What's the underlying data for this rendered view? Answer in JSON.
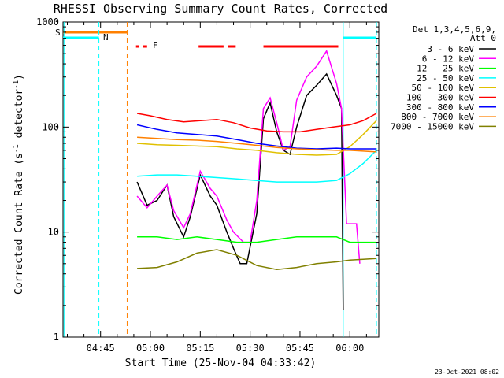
{
  "chart_data": {
    "type": "line",
    "title": "RHESSI Observing Summary Count Rates, Corrected",
    "xlabel": "Start Time (25-Nov-04 04:33:42)",
    "ylabel": "Corrected Count Rate (s⁻¹ detector⁻¹)",
    "yscale": "log",
    "ylim": [
      1,
      1000
    ],
    "xlim_minutes": [
      0,
      95
    ],
    "x_tick_labels": [
      "04:45",
      "05:00",
      "05:15",
      "05:30",
      "05:45",
      "06:00"
    ],
    "y_tick_labels": [
      "1",
      "10",
      "100",
      "1000"
    ],
    "grid": false,
    "legend_position": "right, outside plot",
    "legend_header_lines": [
      "Det 1,3,4,5,6,9,",
      "Att 0"
    ],
    "flag_labels": {
      "saa": "S",
      "night": "N",
      "flare": "F"
    },
    "flag_colors": {
      "saa": "#ff8000",
      "night": "#00ffff",
      "flare": "#ff0000"
    },
    "flare_flag_segments": [
      [
        "04:55:40",
        "04:56:30"
      ],
      [
        "04:57:50",
        "04:59:00"
      ],
      [
        "05:14:30",
        "05:22:00"
      ],
      [
        "05:23:20",
        "05:25:40"
      ],
      [
        "05:34:00",
        "05:56:30"
      ]
    ],
    "eclipse_lines": [
      {
        "time": "04:34:00",
        "style": "solid",
        "color": "#00ffff"
      },
      {
        "time": "04:44:30",
        "style": "dashed",
        "color": "#00ffff"
      },
      {
        "time": "04:53:00",
        "style": "dashed",
        "color": "#ff8000"
      },
      {
        "time": "05:58:00",
        "style": "solid",
        "color": "#00ffff"
      },
      {
        "time": "06:08:00",
        "style": "dashed",
        "color": "#00ffff"
      }
    ],
    "series": [
      {
        "name": "3 - 6 keV",
        "color": "#000000",
        "points": [
          [
            "04:56:00",
            30
          ],
          [
            "04:59:00",
            18
          ],
          [
            "05:02:00",
            20
          ],
          [
            "05:05:00",
            28
          ],
          [
            "05:07:00",
            14
          ],
          [
            "05:10:00",
            9
          ],
          [
            "05:12:00",
            14
          ],
          [
            "05:15:00",
            35
          ],
          [
            "05:18:00",
            22
          ],
          [
            "05:20:00",
            18
          ],
          [
            "05:23:00",
            10
          ],
          [
            "05:25:00",
            7
          ],
          [
            "05:27:00",
            5
          ],
          [
            "05:29:00",
            5
          ],
          [
            "05:32:00",
            15
          ],
          [
            "05:34:00",
            120
          ],
          [
            "05:36:00",
            170
          ],
          [
            "05:38:00",
            90
          ],
          [
            "05:40:00",
            60
          ],
          [
            "05:42:00",
            55
          ],
          [
            "05:44:00",
            100
          ],
          [
            "05:47:00",
            200
          ],
          [
            "05:50:00",
            250
          ],
          [
            "05:53:00",
            320
          ],
          [
            "05:56:00",
            200
          ],
          [
            "05:57:30",
            150
          ],
          [
            "05:58:00",
            1.8
          ]
        ]
      },
      {
        "name": "6 - 12 keV",
        "color": "#ff00ff",
        "points": [
          [
            "04:56:00",
            22
          ],
          [
            "04:59:00",
            17
          ],
          [
            "05:02:00",
            22
          ],
          [
            "05:05:00",
            28
          ],
          [
            "05:07:00",
            16
          ],
          [
            "05:10:00",
            11
          ],
          [
            "05:12:00",
            15
          ],
          [
            "05:15:00",
            38
          ],
          [
            "05:18:00",
            26
          ],
          [
            "05:20:00",
            22
          ],
          [
            "05:23:00",
            13
          ],
          [
            "05:25:00",
            10
          ],
          [
            "05:28:00",
            8
          ],
          [
            "05:30:00",
            8
          ],
          [
            "05:32:00",
            20
          ],
          [
            "05:34:00",
            150
          ],
          [
            "05:36:00",
            190
          ],
          [
            "05:38:00",
            110
          ],
          [
            "05:40:00",
            60
          ],
          [
            "05:42:00",
            65
          ],
          [
            "05:44:00",
            180
          ],
          [
            "05:47:00",
            300
          ],
          [
            "05:50:00",
            380
          ],
          [
            "05:53:00",
            530
          ],
          [
            "05:56:00",
            260
          ],
          [
            "05:57:30",
            150
          ],
          [
            "05:59:00",
            12
          ],
          [
            "06:02:00",
            12
          ],
          [
            "06:03:00",
            5
          ]
        ]
      },
      {
        "name": "12 - 25 keV",
        "color": "#00ff00",
        "points": [
          [
            "04:56:00",
            9
          ],
          [
            "05:02:00",
            9
          ],
          [
            "05:08:00",
            8.5
          ],
          [
            "05:14:00",
            9
          ],
          [
            "05:20:00",
            8.5
          ],
          [
            "05:26:00",
            8
          ],
          [
            "05:32:00",
            8
          ],
          [
            "05:38:00",
            8.5
          ],
          [
            "05:44:00",
            9
          ],
          [
            "05:50:00",
            9
          ],
          [
            "05:56:00",
            9
          ],
          [
            "06:00:00",
            8
          ],
          [
            "06:08:00",
            8
          ]
        ]
      },
      {
        "name": "25 - 50 keV",
        "color": "#00ffff",
        "points": [
          [
            "04:56:00",
            34
          ],
          [
            "05:02:00",
            35
          ],
          [
            "05:08:00",
            35
          ],
          [
            "05:14:00",
            34
          ],
          [
            "05:20:00",
            33
          ],
          [
            "05:26:00",
            32
          ],
          [
            "05:32:00",
            31
          ],
          [
            "05:38:00",
            30
          ],
          [
            "05:44:00",
            30
          ],
          [
            "05:50:00",
            30
          ],
          [
            "05:56:00",
            31
          ],
          [
            "06:00:00",
            36
          ],
          [
            "06:04:00",
            45
          ],
          [
            "06:08:00",
            60
          ]
        ]
      },
      {
        "name": "50 - 100 keV",
        "color": "#e0c000",
        "points": [
          [
            "04:56:00",
            70
          ],
          [
            "05:02:00",
            68
          ],
          [
            "05:08:00",
            67
          ],
          [
            "05:14:00",
            66
          ],
          [
            "05:20:00",
            65
          ],
          [
            "05:26:00",
            62
          ],
          [
            "05:32:00",
            60
          ],
          [
            "05:38:00",
            57
          ],
          [
            "05:44:00",
            55
          ],
          [
            "05:50:00",
            54
          ],
          [
            "05:56:00",
            55
          ],
          [
            "06:00:00",
            65
          ],
          [
            "06:04:00",
            85
          ],
          [
            "06:08:00",
            115
          ]
        ]
      },
      {
        "name": "100 - 300 keV",
        "color": "#ff0000",
        "points": [
          [
            "04:56:00",
            135
          ],
          [
            "05:00:00",
            128
          ],
          [
            "05:05:00",
            118
          ],
          [
            "05:10:00",
            112
          ],
          [
            "05:15:00",
            115
          ],
          [
            "05:20:00",
            118
          ],
          [
            "05:25:00",
            110
          ],
          [
            "05:30:00",
            98
          ],
          [
            "05:35:00",
            92
          ],
          [
            "05:40:00",
            90
          ],
          [
            "05:45:00",
            90
          ],
          [
            "05:50:00",
            95
          ],
          [
            "05:55:00",
            100
          ],
          [
            "06:00:00",
            105
          ],
          [
            "06:04:00",
            115
          ],
          [
            "06:08:00",
            135
          ]
        ]
      },
      {
        "name": "300 - 800 keV",
        "color": "#0000ff",
        "points": [
          [
            "04:56:00",
            105
          ],
          [
            "05:02:00",
            95
          ],
          [
            "05:08:00",
            88
          ],
          [
            "05:14:00",
            85
          ],
          [
            "05:20:00",
            82
          ],
          [
            "05:26:00",
            76
          ],
          [
            "05:32:00",
            70
          ],
          [
            "05:38:00",
            66
          ],
          [
            "05:44:00",
            63
          ],
          [
            "05:50:00",
            62
          ],
          [
            "05:56:00",
            63
          ],
          [
            "06:00:00",
            62
          ],
          [
            "06:08:00",
            62
          ]
        ]
      },
      {
        "name": "800 - 7000 keV",
        "color": "#ff8000",
        "points": [
          [
            "04:56:00",
            80
          ],
          [
            "05:02:00",
            78
          ],
          [
            "05:08:00",
            76
          ],
          [
            "05:14:00",
            75
          ],
          [
            "05:20:00",
            73
          ],
          [
            "05:26:00",
            70
          ],
          [
            "05:32:00",
            67
          ],
          [
            "05:38:00",
            64
          ],
          [
            "05:44:00",
            62
          ],
          [
            "05:50:00",
            61
          ],
          [
            "05:56:00",
            60
          ],
          [
            "06:00:00",
            60
          ],
          [
            "06:08:00",
            58
          ]
        ]
      },
      {
        "name": "7000 - 15000 keV",
        "color": "#808000",
        "points": [
          [
            "04:56:00",
            4.5
          ],
          [
            "05:02:00",
            4.6
          ],
          [
            "05:08:00",
            5.2
          ],
          [
            "05:14:00",
            6.3
          ],
          [
            "05:20:00",
            6.8
          ],
          [
            "05:26:00",
            6.0
          ],
          [
            "05:32:00",
            4.8
          ],
          [
            "05:38:00",
            4.4
          ],
          [
            "05:44:00",
            4.6
          ],
          [
            "05:50:00",
            5.0
          ],
          [
            "05:56:00",
            5.2
          ],
          [
            "06:00:00",
            5.4
          ],
          [
            "06:08:00",
            5.6
          ]
        ]
      }
    ],
    "footer_date": "23-Oct-2021 08:02"
  }
}
